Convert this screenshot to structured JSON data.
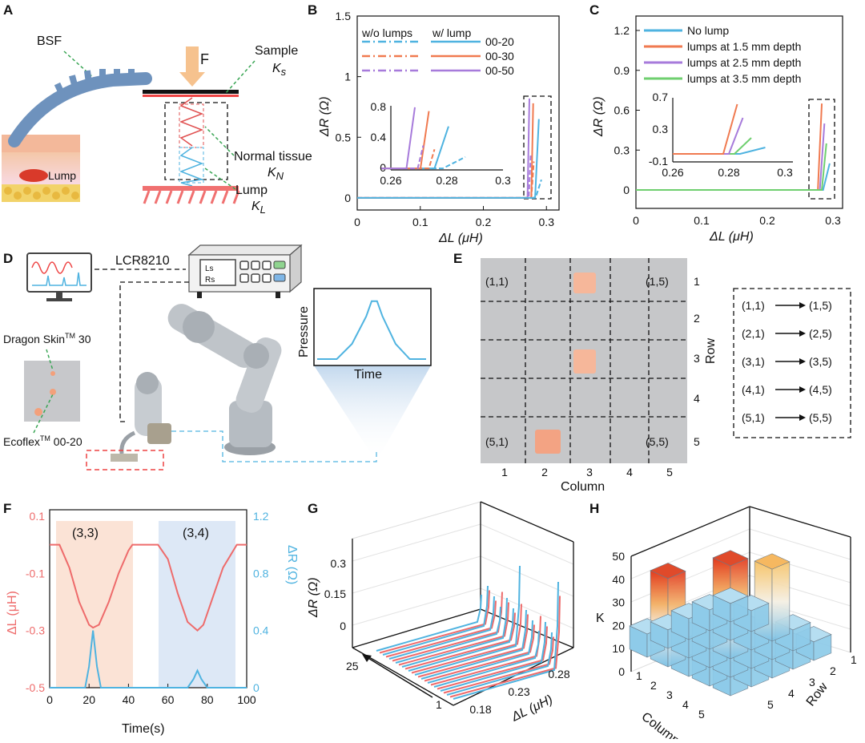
{
  "panels": {
    "A": {
      "label": "A",
      "bsf": "BSF",
      "force": "F",
      "sample": "Sample",
      "ks": "K",
      "ks_sub": "s",
      "normal_tissue": "Normal tissue",
      "kn": "K",
      "kn_sub": "N",
      "lump": "Lump",
      "kl": "K",
      "kl_sub": "L",
      "lump_tag": "Lump"
    },
    "B": {
      "label": "B",
      "legend_header_left": "w/o lumps",
      "legend_header_right": "w/ lump",
      "legend_items": [
        "00-20",
        "00-30",
        "00-50"
      ],
      "xlabel": "ΔL (μH)",
      "ylabel": "ΔR (Ω)",
      "xticks": [
        "0",
        "0.1",
        "0.2",
        "0.3"
      ],
      "yticks": [
        "0",
        "0.5",
        "1",
        "1.5"
      ],
      "inset_xticks": [
        "0.26",
        "0.28",
        "0.3"
      ],
      "inset_yticks": [
        "0",
        "0.4",
        "0.8"
      ]
    },
    "C": {
      "label": "C",
      "legend_items": [
        "No lump",
        "lumps at 1.5 mm depth",
        "lumps at 2.5 mm depth",
        "lumps at 3.5 mm depth"
      ],
      "xlabel": "ΔL (μH)",
      "ylabel": "ΔR (Ω)",
      "xticks": [
        "0",
        "0.1",
        "0.2",
        "0.3"
      ],
      "yticks": [
        "0",
        "0.3",
        "0.6",
        "0.9",
        "1.2"
      ],
      "inset_xticks": [
        "0.26",
        "0.28",
        "0.3"
      ],
      "inset_yticks": [
        "-0.1",
        "0.3",
        "0.7"
      ]
    },
    "D": {
      "label": "D",
      "instrument": "LCR8210",
      "ls": "Ls",
      "rs": "Rs",
      "dragon_skin": "Dragon Skin",
      "dragon_skin_tm": "TM",
      "dragon_skin_num": " 30",
      "ecoflex": "Ecoflex",
      "ecoflex_tm": "TM",
      "ecoflex_num": " 00-20",
      "pressure": "Pressure",
      "time": "Time"
    },
    "E": {
      "label": "E",
      "corner_labels": [
        "(1,1)",
        "(1,5)",
        "(5,1)",
        "(5,5)"
      ],
      "row_ticks": [
        "1",
        "2",
        "3",
        "4",
        "5"
      ],
      "col_ticks": [
        "1",
        "2",
        "3",
        "4",
        "5"
      ],
      "row_label": "Row",
      "col_label": "Column",
      "scan_rows": [
        {
          "from": "(1,1)",
          "to": "(1,5)"
        },
        {
          "from": "(2,1)",
          "to": "(2,5)"
        },
        {
          "from": "(3,1)",
          "to": "(3,5)"
        },
        {
          "from": "(4,1)",
          "to": "(4,5)"
        },
        {
          "from": "(5,1)",
          "to": "(5,5)"
        }
      ]
    },
    "F": {
      "label": "F",
      "region1": "(3,3)",
      "region2": "(3,4)",
      "left_ylabel": "ΔL (μH)",
      "right_ylabel": "ΔR (Ω)",
      "xlabel": "Time(s)",
      "left_yticks": [
        "0.1",
        "-0.1",
        "-0.3",
        "-0.5"
      ],
      "right_yticks": [
        "1.2",
        "0.8",
        "0.4",
        "0"
      ],
      "xticks": [
        "0",
        "20",
        "40",
        "60",
        "80",
        "100"
      ]
    },
    "G": {
      "label": "G",
      "ylabel": "ΔR (Ω)",
      "zticks": [
        "0.3",
        "0.15",
        "0"
      ],
      "xticks": [
        "0.18",
        "0.23",
        "0.28"
      ],
      "xlabel": "ΔL (μH)",
      "idx_start": "1",
      "idx_end": "25"
    },
    "H": {
      "label": "H",
      "zlabel": "K",
      "zticks": [
        "50",
        "40",
        "30",
        "20",
        "10",
        "0"
      ],
      "col_ticks": [
        "1",
        "2",
        "3",
        "4",
        "5"
      ],
      "row_ticks": [
        "5",
        "4",
        "3",
        "2",
        "1"
      ],
      "col_label": "Column",
      "row_label": "Row"
    }
  },
  "colors": {
    "blue": "#4fb3e0",
    "orange": "#f07a50",
    "purple": "#a77bdb",
    "green": "#6fcf6f",
    "red_series": "#ee6b6b",
    "shade_orange": "#fbe3d6",
    "shade_blue": "#dde8f6"
  },
  "chart_data": [
    {
      "panel": "B",
      "type": "line",
      "xlabel": "ΔL (μH)",
      "ylabel": "ΔR (Ω)",
      "xlim": [
        0,
        0.32
      ],
      "ylim": [
        -0.1,
        1.5
      ],
      "series": [
        {
          "name": "00-20 w/o lumps",
          "x": [
            0,
            0.28,
            0.284,
            0.292
          ],
          "y": [
            0,
            0,
            0.02,
            0.15
          ]
        },
        {
          "name": "00-30 w/o lumps",
          "x": [
            0,
            0.276,
            0.28
          ],
          "y": [
            0,
            0,
            0.3
          ]
        },
        {
          "name": "00-50 w/o lumps",
          "x": [
            0,
            0.272,
            0.275
          ],
          "y": [
            0,
            0,
            0.35
          ]
        },
        {
          "name": "00-20 w/ lump",
          "x": [
            0,
            0.282,
            0.288
          ],
          "y": [
            0,
            0,
            0.65
          ]
        },
        {
          "name": "00-30 w/ lump",
          "x": [
            0,
            0.276,
            0.279
          ],
          "y": [
            0,
            0,
            0.78
          ]
        },
        {
          "name": "00-50 w/ lump",
          "x": [
            0,
            0.27,
            0.273
          ],
          "y": [
            0,
            0,
            0.82
          ]
        }
      ]
    },
    {
      "panel": "C",
      "type": "line",
      "xlabel": "ΔL (μH)",
      "ylabel": "ΔR (Ω)",
      "xlim": [
        0,
        0.3
      ],
      "ylim": [
        -0.05,
        1.3
      ],
      "series": [
        {
          "name": "No lump",
          "x": [
            0,
            0.285,
            0.295
          ],
          "y": [
            0,
            0,
            0.2
          ]
        },
        {
          "name": "lumps at 1.5 mm depth",
          "x": [
            0,
            0.277,
            0.283
          ],
          "y": [
            0,
            0,
            0.65
          ]
        },
        {
          "name": "lumps at 2.5 mm depth",
          "x": [
            0,
            0.28,
            0.287
          ],
          "y": [
            0,
            0,
            0.5
          ]
        },
        {
          "name": "lumps at 3.5 mm depth",
          "x": [
            0,
            0.283,
            0.29
          ],
          "y": [
            0,
            0,
            0.35
          ]
        }
      ]
    },
    {
      "panel": "F",
      "type": "line",
      "xlabel": "Time(s)",
      "series": [
        {
          "name": "ΔL (μH)",
          "x": [
            0,
            5,
            10,
            15,
            20,
            22,
            25,
            30,
            35,
            40,
            42,
            55,
            60,
            65,
            70,
            75,
            78,
            82,
            88,
            95,
            100
          ],
          "y": [
            0,
            0,
            -0.08,
            -0.2,
            -0.28,
            -0.29,
            -0.28,
            -0.2,
            -0.1,
            -0.02,
            0,
            0,
            -0.05,
            -0.17,
            -0.27,
            -0.3,
            -0.28,
            -0.2,
            -0.08,
            0,
            0
          ]
        },
        {
          "name": "ΔR (Ω)",
          "x": [
            0,
            18,
            20,
            22,
            24,
            26,
            30,
            70,
            73,
            75,
            77,
            80,
            100
          ],
          "y": [
            0,
            0,
            0.15,
            0.4,
            0.15,
            0,
            0,
            0,
            0.06,
            0.12,
            0.06,
            0,
            0
          ]
        }
      ]
    },
    {
      "panel": "H",
      "type": "bar",
      "zlabel": "K",
      "rows": [
        1,
        2,
        3,
        4,
        5
      ],
      "columns": [
        1,
        2,
        3,
        4,
        5
      ],
      "values": [
        [
          8,
          9,
          31,
          9,
          8
        ],
        [
          9,
          9,
          8,
          9,
          9
        ],
        [
          9,
          8,
          40,
          9,
          9
        ],
        [
          8,
          9,
          9,
          8,
          9
        ],
        [
          10,
          38,
          9,
          8,
          8
        ]
      ]
    }
  ]
}
